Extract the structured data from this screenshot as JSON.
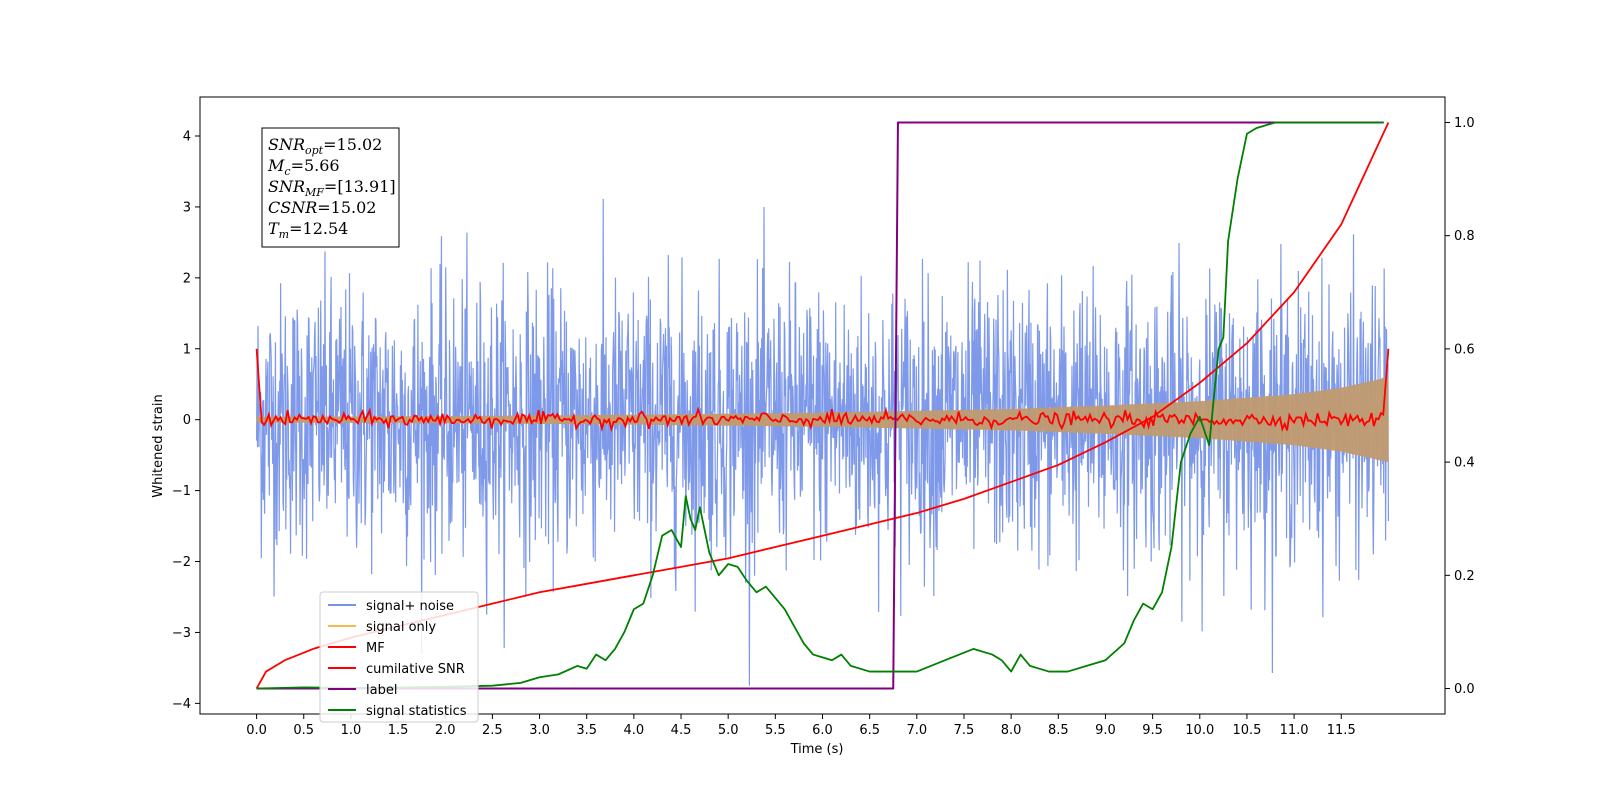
{
  "chart_data": {
    "type": "line",
    "title": "",
    "xlabel": "Time (s)",
    "ylabel": "Whitened strain",
    "xlim": [
      -0.6,
      12.6
    ],
    "ylim": [
      -4.15,
      4.55
    ],
    "y2lim": [
      -0.045,
      1.045
    ],
    "xticks": [
      0.0,
      0.5,
      1.0,
      1.5,
      2.0,
      2.5,
      3.0,
      3.5,
      4.0,
      4.5,
      5.0,
      5.5,
      6.0,
      6.5,
      7.0,
      7.5,
      8.0,
      8.5,
      9.0,
      9.5,
      10.0,
      10.5,
      11.0,
      11.5
    ],
    "xtick_labels": [
      "0.0",
      "0.5",
      "1.0",
      "1.5",
      "2.0",
      "2.5",
      "3.0",
      "3.5",
      "4.0",
      "4.5",
      "5.0",
      "5.5",
      "6.0",
      "6.5",
      "7.0",
      "7.5",
      "8.0",
      "8.5",
      "9.0",
      "9.5",
      "10.0",
      "10.5",
      "11.0",
      "11.5"
    ],
    "yticks": [
      4,
      3,
      2,
      1,
      0,
      -1,
      -2,
      -3,
      -4
    ],
    "ytick_labels": [
      "4",
      "3",
      "2",
      "1",
      "0",
      "−1",
      "−2",
      "−3",
      "−4"
    ],
    "y2ticks": [
      1.0,
      0.8,
      0.6,
      0.4,
      0.2,
      0.0
    ],
    "y2tick_labels": [
      "1.0",
      "0.8",
      "0.6",
      "0.4",
      "0.2",
      "0.0"
    ],
    "grid": false,
    "legend_position": "lower-left",
    "annotation_lines": [
      {
        "base": "SNR",
        "sub": "opt",
        "value": "=15.02"
      },
      {
        "base": "M",
        "sub": "c",
        "value": "=5.66"
      },
      {
        "base": "SNR",
        "sub": "MF",
        "value": "=[13.91]"
      },
      {
        "base": "CSNR",
        "sub": "",
        "value": "=15.02"
      },
      {
        "base": "T",
        "sub": "m",
        "value": "=12.54"
      }
    ],
    "series": [
      {
        "name": "signal+ noise",
        "axis": "left",
        "color": "#7793e8",
        "description_values": "dense noise trace, x from 0.0 to 12.0 s, amplitude mostly within ±2.5, peaks near 4.1 at x=4.6 and -3.75 at x=10.65"
      },
      {
        "name": "signal only",
        "axis": "left",
        "color": "#f5b94d",
        "envelope": {
          "x": [
            0.0,
            2.0,
            4.0,
            6.0,
            8.0,
            9.0,
            10.0,
            11.0,
            11.5,
            12.0
          ],
          "amp": [
            0.04,
            0.05,
            0.07,
            0.1,
            0.15,
            0.2,
            0.26,
            0.36,
            0.45,
            0.6
          ]
        }
      },
      {
        "name": "MF",
        "axis": "left",
        "color": "#ff0000",
        "endpoints": {
          "start": 1.0,
          "end": 1.0
        },
        "baseline": 0.0
      },
      {
        "name": "cumilative SNR",
        "axis": "right",
        "color": "#ff0000",
        "x": [
          0.0,
          0.1,
          0.3,
          0.6,
          1.0,
          1.5,
          2.0,
          2.5,
          3.0,
          3.5,
          4.0,
          4.5,
          5.0,
          5.5,
          6.0,
          6.5,
          7.0,
          7.5,
          8.0,
          8.5,
          9.0,
          9.5,
          10.0,
          10.5,
          11.0,
          11.5,
          12.0
        ],
        "values": [
          0.0,
          0.03,
          0.05,
          0.07,
          0.09,
          0.11,
          0.13,
          0.15,
          0.17,
          0.185,
          0.2,
          0.215,
          0.23,
          0.25,
          0.27,
          0.29,
          0.31,
          0.335,
          0.365,
          0.395,
          0.435,
          0.48,
          0.54,
          0.61,
          0.7,
          0.82,
          1.0
        ]
      },
      {
        "name": "label",
        "axis": "right",
        "color": "#800080",
        "x": [
          0.0,
          6.75,
          6.8,
          11.95
        ],
        "values": [
          0.0,
          0.0,
          1.0,
          1.0
        ]
      },
      {
        "name": "signal statistics",
        "axis": "right",
        "color": "#008000",
        "x": [
          0.0,
          0.5,
          1.0,
          1.5,
          2.0,
          2.5,
          2.8,
          3.0,
          3.2,
          3.4,
          3.5,
          3.6,
          3.7,
          3.8,
          3.9,
          4.0,
          4.1,
          4.2,
          4.3,
          4.4,
          4.5,
          4.55,
          4.6,
          4.65,
          4.7,
          4.8,
          4.9,
          5.0,
          5.1,
          5.2,
          5.3,
          5.4,
          5.5,
          5.6,
          5.7,
          5.8,
          5.9,
          6.0,
          6.1,
          6.2,
          6.3,
          6.5,
          6.7,
          7.0,
          7.3,
          7.6,
          7.8,
          7.9,
          8.0,
          8.1,
          8.2,
          8.4,
          8.6,
          8.8,
          9.0,
          9.2,
          9.3,
          9.4,
          9.5,
          9.6,
          9.7,
          9.8,
          9.9,
          10.0,
          10.1,
          10.2,
          10.25,
          10.3,
          10.4,
          10.5,
          10.6,
          10.8,
          11.0,
          11.5,
          11.95
        ],
        "values": [
          0.0,
          0.002,
          0.001,
          0.002,
          0.003,
          0.005,
          0.01,
          0.02,
          0.025,
          0.04,
          0.035,
          0.06,
          0.05,
          0.07,
          0.1,
          0.14,
          0.15,
          0.2,
          0.27,
          0.28,
          0.25,
          0.34,
          0.3,
          0.28,
          0.32,
          0.24,
          0.2,
          0.22,
          0.215,
          0.19,
          0.17,
          0.18,
          0.16,
          0.14,
          0.11,
          0.08,
          0.06,
          0.055,
          0.05,
          0.06,
          0.04,
          0.03,
          0.03,
          0.03,
          0.05,
          0.07,
          0.06,
          0.05,
          0.03,
          0.06,
          0.04,
          0.03,
          0.03,
          0.04,
          0.05,
          0.08,
          0.12,
          0.15,
          0.14,
          0.17,
          0.25,
          0.4,
          0.45,
          0.48,
          0.43,
          0.6,
          0.62,
          0.79,
          0.9,
          0.98,
          0.99,
          1.0,
          1.0,
          1.0,
          1.0
        ]
      }
    ]
  }
}
